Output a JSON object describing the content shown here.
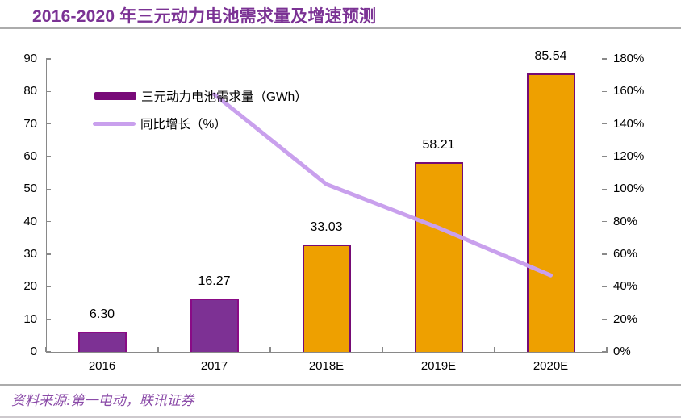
{
  "title": "2016-2020 年三元动力电池需求量及增速预测",
  "source_note": "资料来源:第一电动，联讯证券",
  "colors": {
    "title": "#7B3294",
    "axis": "#898989",
    "divider": "#ACACAC",
    "bar_purple": "#7D3194",
    "bar_purple_border": "#8A0B86",
    "bar_orange": "#EEA000",
    "bar_orange_border": "#750B75",
    "growth_line": "#C9A0ED",
    "legend_bar_swatch": "#780A78",
    "source_text": "#8B4BA8"
  },
  "legend": {
    "items": [
      {
        "label": "三元动力电池需求量（GWh）",
        "type": "bar"
      },
      {
        "label": "同比增长（%）",
        "type": "line"
      }
    ]
  },
  "chart_data": {
    "type": "bar",
    "title": "2016-2020 年三元动力电池需求量及增速预测",
    "categories": [
      "2016",
      "2017",
      "2018E",
      "2019E",
      "2020E"
    ],
    "series": [
      {
        "name": "三元动力电池需求量（GWh）",
        "type": "bar",
        "axis": "left",
        "values": [
          6.3,
          16.27,
          33.03,
          58.21,
          85.54
        ],
        "data_labels": [
          "6.30",
          "16.27",
          "33.03",
          "58.21",
          "85.54"
        ],
        "bar_styles": [
          "purple",
          "purple",
          "orange",
          "orange",
          "orange"
        ]
      },
      {
        "name": "同比增长（%）",
        "type": "line",
        "axis": "right",
        "values": [
          null,
          158.3,
          103.0,
          76.2,
          47.0
        ]
      }
    ],
    "left_axis": {
      "min": 0,
      "max": 90,
      "ticks": [
        "0",
        "10",
        "20",
        "30",
        "40",
        "50",
        "60",
        "70",
        "80",
        "90"
      ]
    },
    "right_axis": {
      "min": 0,
      "max": 180,
      "ticks": [
        "0%",
        "20%",
        "40%",
        "60%",
        "80%",
        "100%",
        "120%",
        "140%",
        "160%",
        "180%"
      ]
    },
    "grid": false,
    "legend_position": "top-left-inside"
  }
}
